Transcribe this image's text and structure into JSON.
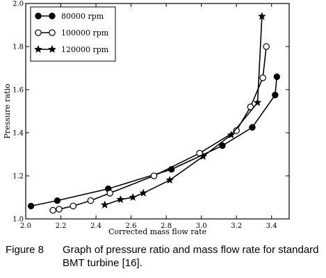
{
  "chart_data": {
    "type": "line",
    "title": "",
    "xlabel": "Corrected mass flow rate",
    "ylabel": "Pressure ratio",
    "xlim": [
      2.0,
      3.5
    ],
    "ylim": [
      1.0,
      2.0
    ],
    "xticks": [
      2.0,
      2.2,
      2.4,
      2.6,
      2.8,
      3.0,
      3.2,
      3.4
    ],
    "xtick_labels": [
      "2.0",
      "2.2",
      "2.4",
      "2.6",
      "2.8",
      "3.0",
      "3.2",
      "3.4"
    ],
    "yticks": [
      1.0,
      1.2,
      1.4,
      1.6,
      1.8,
      2.0
    ],
    "ytick_labels": [
      "1.0",
      "1.2",
      "1.4",
      "1.6",
      "1.8",
      "2.0"
    ],
    "grid": false,
    "legend_position": "top-left",
    "series": [
      {
        "name": "80000 rpm",
        "marker": "filled-circle",
        "x": [
          2.03,
          2.18,
          2.47,
          2.83,
          3.12,
          3.29,
          3.42,
          3.43
        ],
        "y": [
          1.06,
          1.085,
          1.14,
          1.23,
          1.34,
          1.425,
          1.575,
          1.66
        ]
      },
      {
        "name": "100000 rpm",
        "marker": "open-circle",
        "x": [
          2.155,
          2.19,
          2.27,
          2.37,
          2.48,
          2.73,
          2.99,
          3.2,
          3.28,
          3.35,
          3.37
        ],
        "y": [
          1.04,
          1.045,
          1.06,
          1.085,
          1.12,
          1.2,
          1.305,
          1.41,
          1.52,
          1.655,
          1.8
        ]
      },
      {
        "name": "120000 rpm",
        "marker": "star",
        "x": [
          2.45,
          2.54,
          2.61,
          2.67,
          2.82,
          3.01,
          3.17,
          3.32,
          3.345
        ],
        "y": [
          1.065,
          1.09,
          1.1,
          1.12,
          1.18,
          1.29,
          1.39,
          1.54,
          1.94
        ]
      }
    ]
  },
  "caption": {
    "number": "Figure 8",
    "text": "Graph of pressure ratio and mass flow rate for standard BMT turbine [16]."
  }
}
